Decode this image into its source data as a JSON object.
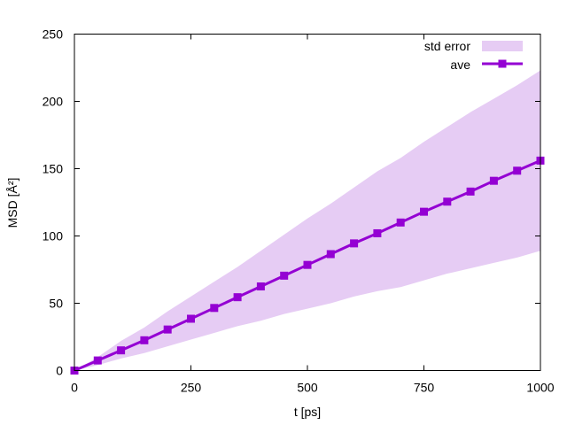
{
  "chart_data": {
    "type": "line",
    "xlabel": "t [ps]",
    "ylabel": "MSD [Å²]",
    "xlim": [
      0,
      1000
    ],
    "ylim": [
      0,
      250
    ],
    "xticks": [
      0,
      250,
      500,
      750,
      1000
    ],
    "yticks": [
      0,
      50,
      100,
      150,
      200,
      250
    ],
    "grid": false,
    "legend_position": "top-right",
    "x": [
      0,
      50,
      100,
      150,
      200,
      250,
      300,
      350,
      400,
      450,
      500,
      550,
      600,
      650,
      700,
      750,
      800,
      850,
      900,
      950,
      1000
    ],
    "band": {
      "name": "std error",
      "color": "#e6ccf4",
      "lower": [
        0,
        4,
        9,
        13,
        18,
        23,
        28,
        33,
        37,
        42,
        46,
        50,
        55,
        59,
        62,
        67,
        72,
        76,
        80,
        84,
        89
      ],
      "upper": [
        0,
        10,
        22,
        32,
        44,
        55,
        66,
        77,
        89,
        101,
        113,
        124,
        136,
        148,
        158,
        170,
        181,
        192,
        202,
        212,
        223
      ]
    },
    "series": [
      {
        "name": "ave",
        "color": "#9400d3",
        "marker": "square",
        "values": [
          0,
          7.5,
          15,
          22.5,
          30.5,
          38.5,
          46.5,
          54.5,
          62.5,
          70.5,
          78.5,
          86.5,
          94.5,
          102,
          110,
          118,
          125.5,
          133,
          141,
          148.5,
          156
        ]
      }
    ]
  }
}
